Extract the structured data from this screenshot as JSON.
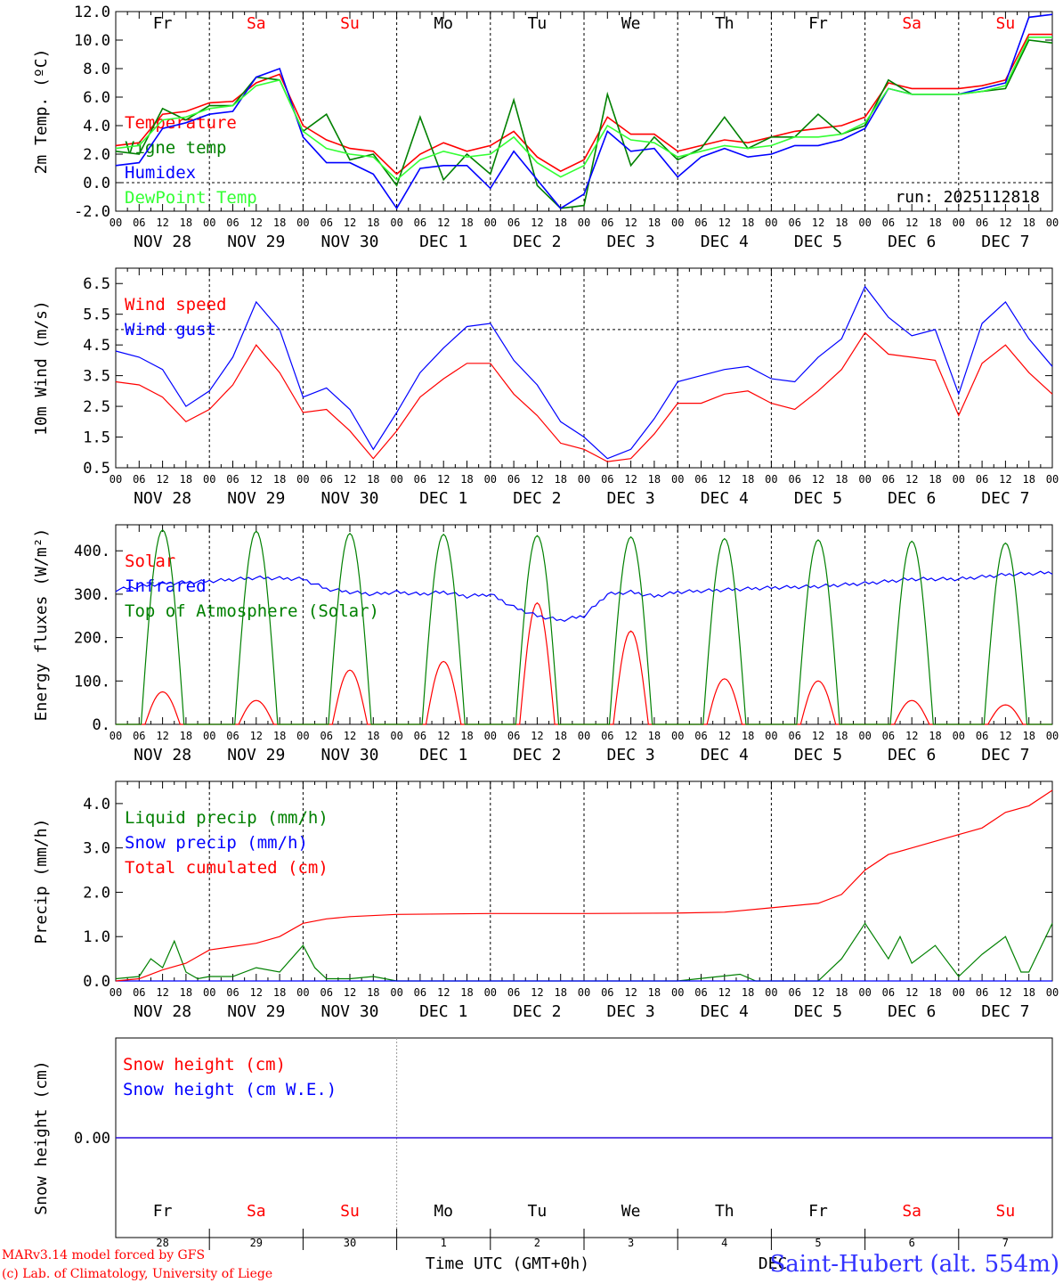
{
  "run_label": "run: 2025112818",
  "colors": {
    "red": "#ff0000",
    "green": "#008000",
    "blue": "#0000ff",
    "lightgreen": "#33ff33"
  },
  "weekdays": [
    {
      "label": "Fr",
      "weekend": false
    },
    {
      "label": "Sa",
      "weekend": true
    },
    {
      "label": "Su",
      "weekend": true
    },
    {
      "label": "Mo",
      "weekend": false
    },
    {
      "label": "Tu",
      "weekend": false
    },
    {
      "label": "We",
      "weekend": false
    },
    {
      "label": "Th",
      "weekend": false
    },
    {
      "label": "Fr",
      "weekend": false
    },
    {
      "label": "Sa",
      "weekend": true
    },
    {
      "label": "Su",
      "weekend": true
    }
  ],
  "date_labels": [
    "NOV 28",
    "NOV 29",
    "NOV 30",
    "DEC  1",
    "DEC  2",
    "DEC  3",
    "DEC  4",
    "DEC  5",
    "DEC  6",
    "DEC  7"
  ],
  "hour_ticks": [
    "00",
    "06",
    "12",
    "18"
  ],
  "final_hour_tick": "00",
  "day_numbers": [
    "28",
    "29",
    "30",
    "1",
    "2",
    "3",
    "4",
    "5",
    "6",
    "7"
  ],
  "footer": {
    "model": "MARv3.14 model forced by GFS",
    "lab": "(c) Lab. of Climatology, University of Liege",
    "xlabel": "Time UTC (GMT+0h)",
    "month": "DEC",
    "station": "Saint-Hubert (alt. 554m)"
  },
  "chart_data": [
    {
      "type": "line",
      "ylabel": "2m Temp. (ºC)",
      "ylim": [
        -2,
        12
      ],
      "yticks": [
        "-2.0",
        "0.0",
        "2.0",
        "4.0",
        "6.0",
        "8.0",
        "10.0",
        "12.0"
      ],
      "ytick_values": [
        -2,
        0,
        2,
        4,
        6,
        8,
        10,
        12
      ],
      "ref_line": 0,
      "x_hours": [
        0,
        6,
        12,
        18,
        24,
        30,
        36,
        42,
        48,
        54,
        60,
        66,
        72,
        78,
        84,
        90,
        96,
        102,
        108,
        114,
        120,
        126,
        132,
        138,
        144,
        150,
        156,
        162,
        168,
        174,
        180,
        186,
        192,
        198,
        204,
        210,
        216,
        222,
        228,
        234,
        240
      ],
      "series": [
        {
          "name": "Temperature",
          "color": "red",
          "values": [
            2.6,
            2.8,
            4.8,
            5.0,
            5.6,
            5.7,
            7.0,
            7.6,
            4.0,
            3.0,
            2.4,
            2.2,
            0.6,
            2.0,
            2.8,
            2.2,
            2.6,
            3.6,
            1.8,
            0.8,
            1.6,
            4.6,
            3.4,
            3.4,
            2.2,
            2.6,
            3.0,
            2.8,
            3.2,
            3.6,
            3.8,
            4.0,
            4.6,
            7.0,
            6.6,
            6.6,
            6.6,
            6.8,
            7.2,
            10.4,
            10.4
          ]
        },
        {
          "name": "Vigne temp",
          "color": "green",
          "values": [
            2.2,
            2.0,
            5.2,
            4.4,
            5.4,
            5.4,
            7.4,
            7.2,
            3.6,
            4.8,
            1.6,
            2.0,
            -0.2,
            4.6,
            0.2,
            2.0,
            0.6,
            5.8,
            -0.2,
            -1.8,
            -1.6,
            6.2,
            1.2,
            3.2,
            1.6,
            2.4,
            4.6,
            2.4,
            3.2,
            3.2,
            4.8,
            3.4,
            4.0,
            7.2,
            6.2,
            6.2,
            6.2,
            6.4,
            6.6,
            10.0,
            9.8
          ]
        },
        {
          "name": "Humidex",
          "color": "blue",
          "values": [
            1.2,
            1.4,
            3.8,
            4.2,
            4.8,
            5.0,
            7.4,
            8.0,
            3.2,
            1.4,
            1.4,
            0.6,
            -1.8,
            1.0,
            1.2,
            1.2,
            -0.4,
            2.2,
            0.2,
            -1.8,
            -0.8,
            3.6,
            2.2,
            2.4,
            0.4,
            1.8,
            2.4,
            1.8,
            2.0,
            2.6,
            2.6,
            3.0,
            3.8,
            6.6,
            6.2,
            6.2,
            6.2,
            6.6,
            7.0,
            11.6,
            11.8
          ]
        },
        {
          "name": "DewPoint Temp",
          "color": "lightgreen",
          "values": [
            2.4,
            2.6,
            4.4,
            4.6,
            5.2,
            5.4,
            6.8,
            7.2,
            3.6,
            2.4,
            2.0,
            1.8,
            0.2,
            1.6,
            2.2,
            1.8,
            2.0,
            3.2,
            1.4,
            0.4,
            1.2,
            4.0,
            3.0,
            2.8,
            1.8,
            2.2,
            2.6,
            2.4,
            2.6,
            3.2,
            3.2,
            3.4,
            4.2,
            6.6,
            6.2,
            6.2,
            6.2,
            6.4,
            6.8,
            10.2,
            10.2
          ]
        }
      ]
    },
    {
      "type": "line",
      "ylabel": "10m Wind (m/s)",
      "ylim": [
        0.5,
        7
      ],
      "yticks": [
        "0.5",
        "1.5",
        "2.5",
        "3.5",
        "4.5",
        "5.5",
        "6.5"
      ],
      "ytick_values": [
        0.5,
        1.5,
        2.5,
        3.5,
        4.5,
        5.5,
        6.5
      ],
      "ref_line": 5,
      "x_hours": [
        0,
        6,
        12,
        18,
        24,
        30,
        36,
        42,
        48,
        54,
        60,
        66,
        72,
        78,
        84,
        90,
        96,
        102,
        108,
        114,
        120,
        126,
        132,
        138,
        144,
        150,
        156,
        162,
        168,
        174,
        180,
        186,
        192,
        198,
        204,
        210,
        216,
        222,
        228,
        234,
        240
      ],
      "series": [
        {
          "name": "Wind speed",
          "color": "red",
          "values": [
            3.3,
            3.2,
            2.8,
            2.0,
            2.4,
            3.2,
            4.5,
            3.6,
            2.3,
            2.4,
            1.7,
            0.8,
            1.7,
            2.8,
            3.4,
            3.9,
            3.9,
            2.9,
            2.2,
            1.3,
            1.1,
            0.7,
            0.8,
            1.6,
            2.6,
            2.6,
            2.9,
            3.0,
            2.6,
            2.4,
            3.0,
            3.7,
            4.9,
            4.2,
            4.1,
            4.0,
            2.2,
            3.9,
            4.5,
            3.6,
            2.9
          ]
        },
        {
          "name": "Wind gust",
          "color": "blue",
          "values": [
            4.3,
            4.1,
            3.7,
            2.5,
            3.0,
            4.1,
            5.9,
            5.0,
            2.8,
            3.1,
            2.4,
            1.1,
            2.3,
            3.6,
            4.4,
            5.1,
            5.2,
            4.0,
            3.2,
            2.0,
            1.5,
            0.8,
            1.1,
            2.1,
            3.3,
            3.5,
            3.7,
            3.8,
            3.4,
            3.3,
            4.1,
            4.7,
            6.4,
            5.4,
            4.8,
            5.0,
            2.9,
            5.2,
            5.9,
            4.7,
            3.8
          ]
        }
      ]
    },
    {
      "type": "line",
      "ylabel": "Energy fluxes (W/m²)",
      "ylim": [
        0,
        460
      ],
      "yticks": [
        "0.",
        "100.",
        "200.",
        "300.",
        "400."
      ],
      "ytick_values": [
        0,
        100,
        200,
        300,
        400
      ],
      "series": [
        {
          "name": "Solar",
          "color": "red",
          "day_peaks": [
            75,
            55,
            125,
            145,
            280,
            215,
            105,
            100,
            55,
            45
          ]
        },
        {
          "name": "Infrared",
          "color": "blue",
          "hours": [
            0,
            12,
            24,
            36,
            48,
            54,
            60,
            66,
            72,
            78,
            84,
            90,
            96,
            102,
            108,
            114,
            120,
            126,
            132,
            138,
            144,
            156,
            168,
            180,
            192,
            204,
            216,
            228,
            240
          ],
          "values": [
            310,
            325,
            330,
            338,
            335,
            312,
            305,
            300,
            305,
            300,
            305,
            295,
            300,
            270,
            250,
            240,
            250,
            300,
            305,
            295,
            305,
            310,
            315,
            318,
            325,
            335,
            335,
            345,
            350
          ]
        },
        {
          "name": "Top of Atmosphere (Solar)",
          "color": "green",
          "day_peaks": [
            448,
            445,
            440,
            438,
            435,
            432,
            428,
            425,
            422,
            418
          ]
        }
      ]
    },
    {
      "type": "line",
      "ylabel": "Precip (mm/h)",
      "ylim": [
        0,
        4.5
      ],
      "yticks": [
        "0.0",
        "1.0",
        "2.0",
        "3.0",
        "4.0"
      ],
      "ytick_values": [
        0,
        1,
        2,
        3,
        4
      ],
      "series": [
        {
          "name": "Liquid precip (mm/h)",
          "color": "green",
          "hours": [
            0,
            6,
            9,
            12,
            15,
            18,
            21,
            24,
            30,
            36,
            42,
            48,
            51,
            54,
            60,
            66,
            72,
            84,
            96,
            120,
            144,
            160,
            164,
            168,
            180,
            186,
            192,
            198,
            201,
            204,
            210,
            216,
            222,
            228,
            232,
            234,
            240
          ],
          "values": [
            0.05,
            0.1,
            0.5,
            0.3,
            0.9,
            0.2,
            0.05,
            0.1,
            0.1,
            0.3,
            0.2,
            0.8,
            0.3,
            0.05,
            0.05,
            0.1,
            0.0,
            0.0,
            0.0,
            0.0,
            0.0,
            0.15,
            0.0,
            0.0,
            0.0,
            0.5,
            1.3,
            0.5,
            1.0,
            0.4,
            0.8,
            0.1,
            0.6,
            1.0,
            0.2,
            0.2,
            1.3
          ]
        },
        {
          "name": "Snow precip (mm/h)",
          "color": "blue",
          "hours": [
            0,
            240
          ],
          "values": [
            0,
            0
          ]
        },
        {
          "name": "Total cumulated (cm)",
          "color": "red",
          "hours": [
            0,
            6,
            12,
            18,
            24,
            36,
            42,
            48,
            54,
            60,
            72,
            96,
            120,
            144,
            156,
            168,
            180,
            186,
            192,
            198,
            204,
            210,
            216,
            222,
            228,
            234,
            240
          ],
          "values": [
            0.0,
            0.05,
            0.25,
            0.4,
            0.7,
            0.85,
            1.0,
            1.3,
            1.4,
            1.45,
            1.5,
            1.52,
            1.52,
            1.53,
            1.55,
            1.65,
            1.75,
            1.95,
            2.5,
            2.85,
            3.0,
            3.15,
            3.3,
            3.45,
            3.8,
            3.95,
            4.3
          ]
        }
      ]
    },
    {
      "type": "line",
      "ylabel": "Snow height (cm)",
      "ylim": [
        -1,
        1
      ],
      "yticks": [
        "0.00"
      ],
      "ytick_values": [
        0
      ],
      "series": [
        {
          "name": "Snow height (cm)",
          "color": "red",
          "values": [
            0,
            0
          ]
        },
        {
          "name": "Snow height (cm W.E.)",
          "color": "blue",
          "values": [
            0,
            0
          ]
        }
      ]
    }
  ]
}
